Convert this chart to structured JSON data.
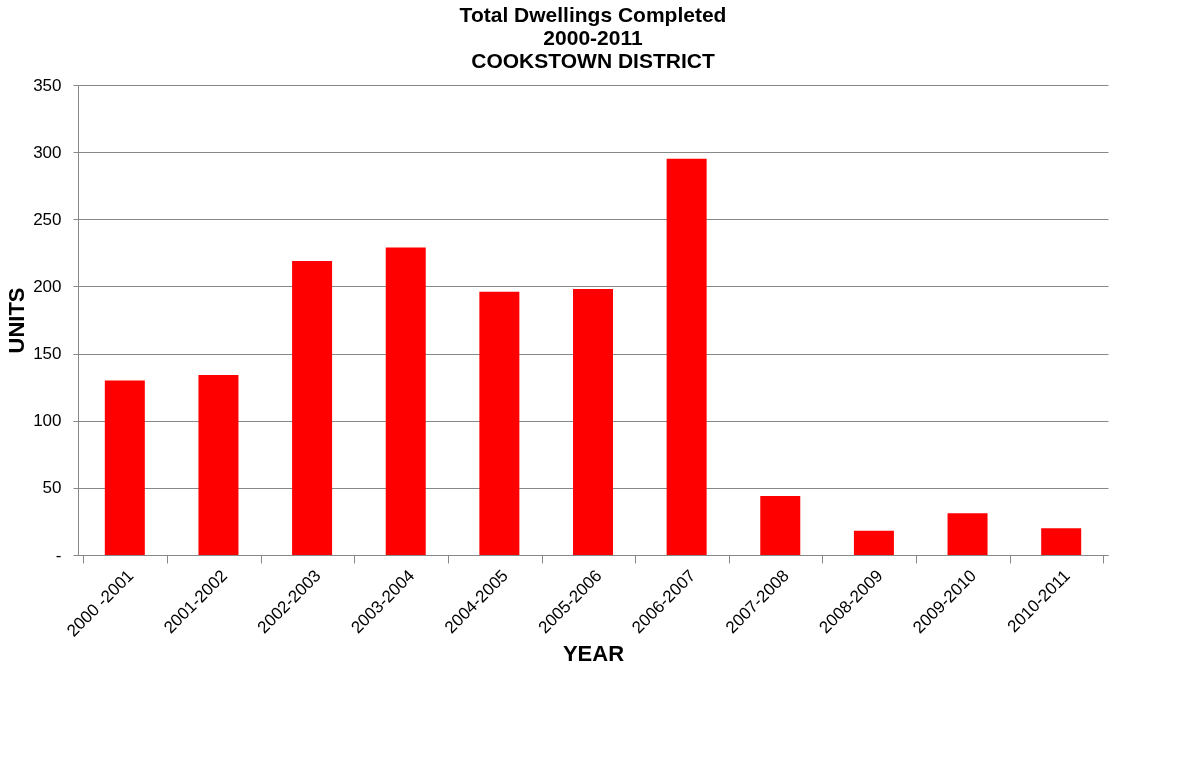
{
  "chart_data": {
    "type": "bar",
    "title": [
      "Total Dwellings Completed",
      "2000-2011",
      "COOKSTOWN DISTRICT"
    ],
    "xlabel": "YEAR",
    "ylabel": "UNITS",
    "categories": [
      "2000 -2001",
      "2001-2002",
      "2002-2003",
      "2003-2004",
      "2004-2005",
      "2005-2006",
      "2006-2007",
      "2007-2008",
      "2008-2009",
      "2009-2010",
      "2010-2011"
    ],
    "values": [
      130,
      134,
      219,
      229,
      196,
      198,
      295,
      44,
      18,
      31,
      20
    ],
    "color": "#ff0000",
    "ylim": [
      0,
      350
    ],
    "yticks": [
      {
        "value": 0,
        "label": "-"
      },
      50,
      100,
      150,
      200,
      250,
      300,
      350
    ],
    "grid": "y"
  }
}
